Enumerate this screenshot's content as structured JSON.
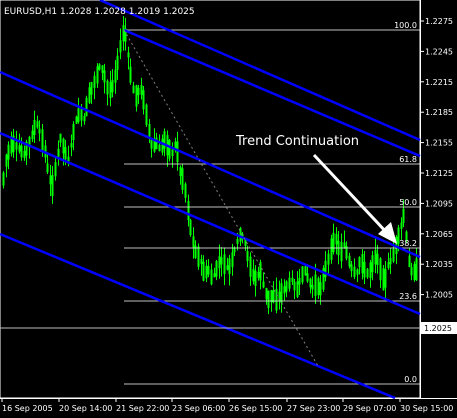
{
  "header": {
    "symbol": "EURUSD,H1",
    "open": "1.2028",
    "high": "1.2028",
    "low": "1.2019",
    "close": "1.2025"
  },
  "annotation": "Trend Continuation",
  "current_price": "1.2025",
  "colors": {
    "background": "#000000",
    "candles": "#00ff00",
    "channel_lines": "#0000ff",
    "fib_lines": "#ffffff",
    "trend_dotted": "#808080",
    "text": "#ffffff"
  },
  "fib_levels": [
    {
      "label": "100.0",
      "price": 1.2265
    },
    {
      "label": "61.8",
      "price": 1.2156
    },
    {
      "label": "50.0",
      "price": 1.2123
    },
    {
      "label": "38.2",
      "price": 1.2089
    },
    {
      "label": "23.6",
      "price": 1.2047
    },
    {
      "label": "0.0",
      "price": 1.198
    }
  ],
  "chart_data": {
    "type": "candlestick",
    "title": "EURUSD,H1  1.2028 1.2028 1.2019 1.2025",
    "y_ticks": [
      "1.2275",
      "1.2245",
      "1.2215",
      "1.2185",
      "1.2155",
      "1.2125",
      "1.2095",
      "1.2065",
      "1.2035",
      "1.2005",
      "1.1975"
    ],
    "y_values": [
      1.2275,
      1.2245,
      1.2215,
      1.2185,
      1.2155,
      1.2125,
      1.2095,
      1.2065,
      1.2035,
      1.2005,
      1.1975
    ],
    "ylim": [
      1.1963,
      1.2295
    ],
    "x_ticks": [
      "16 Sep 2005",
      "20 Sep 14:00",
      "21 Sep 22:00",
      "23 Sep 06:00",
      "26 Sep 15:00",
      "27 Sep 23:00",
      "29 Sep 07:00",
      "30 Sep 15:00"
    ],
    "close_path": [
      [
        0,
        1.2098
      ],
      [
        6,
        1.214
      ],
      [
        12,
        1.2155
      ],
      [
        18,
        1.215
      ],
      [
        24,
        1.2143
      ],
      [
        30,
        1.2158
      ],
      [
        36,
        1.2175
      ],
      [
        40,
        1.2165
      ],
      [
        44,
        1.215
      ],
      [
        48,
        1.2125
      ],
      [
        52,
        1.211
      ],
      [
        56,
        1.2135
      ],
      [
        60,
        1.216
      ],
      [
        64,
        1.2148
      ],
      [
        68,
        1.2138
      ],
      [
        72,
        1.216
      ],
      [
        76,
        1.2178
      ],
      [
        80,
        1.2185
      ],
      [
        84,
        1.2178
      ],
      [
        88,
        1.22
      ],
      [
        92,
        1.221
      ],
      [
        96,
        1.222
      ],
      [
        100,
        1.2232
      ],
      [
        104,
        1.2222
      ],
      [
        108,
        1.2205
      ],
      [
        112,
        1.221
      ],
      [
        116,
        1.2225
      ],
      [
        120,
        1.225
      ],
      [
        124,
        1.227
      ],
      [
        128,
        1.224
      ],
      [
        132,
        1.221
      ],
      [
        136,
        1.22
      ],
      [
        140,
        1.221
      ],
      [
        144,
        1.2195
      ],
      [
        148,
        1.217
      ],
      [
        152,
        1.215
      ],
      [
        156,
        1.2155
      ],
      [
        160,
        1.2148
      ],
      [
        164,
        1.2158
      ],
      [
        168,
        1.215
      ],
      [
        172,
        1.2145
      ],
      [
        176,
        1.2155
      ],
      [
        180,
        1.2125
      ],
      [
        184,
        1.2115
      ],
      [
        188,
        1.2085
      ],
      [
        192,
        1.206
      ],
      [
        196,
        1.2045
      ],
      [
        200,
        1.204
      ],
      [
        204,
        1.2025
      ],
      [
        208,
        1.203
      ],
      [
        212,
        1.202
      ],
      [
        216,
        1.203
      ],
      [
        220,
        1.204
      ],
      [
        224,
        1.2035
      ],
      [
        228,
        1.203
      ],
      [
        232,
        1.204
      ],
      [
        236,
        1.2055
      ],
      [
        240,
        1.2065
      ],
      [
        244,
        1.206
      ],
      [
        248,
        1.204
      ],
      [
        252,
        1.2025
      ],
      [
        256,
        1.202
      ],
      [
        260,
        1.203
      ],
      [
        264,
        1.201
      ],
      [
        268,
        1.2
      ],
      [
        272,
        1.2005
      ],
      [
        276,
        1.2
      ],
      [
        280,
        1.2005
      ],
      [
        284,
        1.201
      ],
      [
        288,
        1.2015
      ],
      [
        292,
        1.202
      ],
      [
        296,
        1.2008
      ],
      [
        300,
        1.202
      ],
      [
        304,
        1.203
      ],
      [
        308,
        1.202
      ],
      [
        312,
        1.2012
      ],
      [
        316,
        1.2015
      ],
      [
        320,
        1.201
      ],
      [
        324,
        1.2025
      ],
      [
        328,
        1.204
      ],
      [
        332,
        1.2055
      ],
      [
        336,
        1.206
      ],
      [
        340,
        1.2045
      ],
      [
        344,
        1.2055
      ],
      [
        348,
        1.204
      ],
      [
        352,
        1.203
      ],
      [
        356,
        1.2025
      ],
      [
        360,
        1.204
      ],
      [
        364,
        1.203
      ],
      [
        368,
        1.2025
      ],
      [
        372,
        1.2035
      ],
      [
        376,
        1.2045
      ],
      [
        380,
        1.203
      ],
      [
        384,
        1.2015
      ],
      [
        388,
        1.2035
      ],
      [
        392,
        1.204
      ],
      [
        396,
        1.2055
      ],
      [
        400,
        1.207
      ],
      [
        404,
        1.2085
      ],
      [
        408,
        1.204
      ],
      [
        412,
        1.2025
      ],
      [
        416,
        1.203
      ]
    ]
  }
}
